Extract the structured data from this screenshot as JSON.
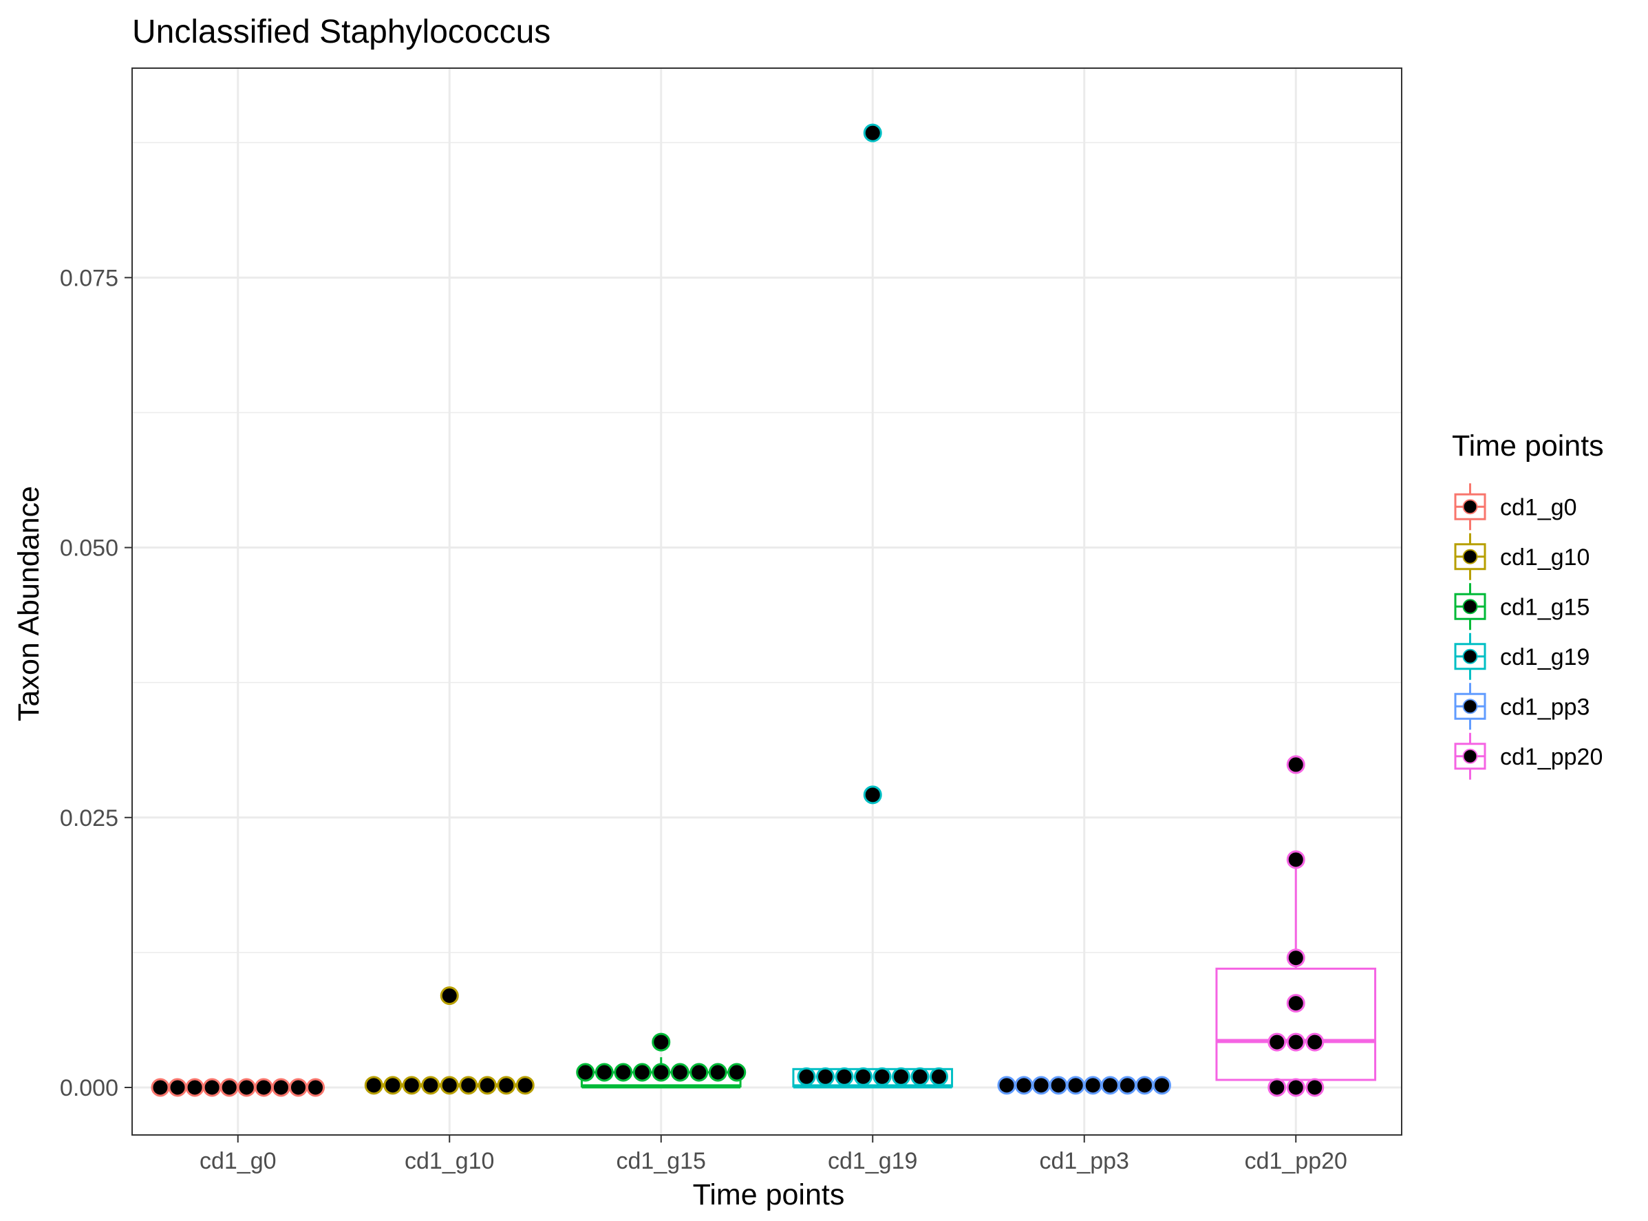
{
  "chart_data": {
    "type": "box",
    "title": "Unclassified  Staphylococcus",
    "xlabel": "Time points",
    "ylabel": "Taxon Abundance",
    "categories": [
      "cd1_g0",
      "cd1_g10",
      "cd1_g15",
      "cd1_g19",
      "cd1_pp3",
      "cd1_pp20"
    ],
    "ylim": [
      -0.0044,
      0.0944
    ],
    "yticks": [
      0.0,
      0.025,
      0.05,
      0.075
    ],
    "ytick_labels": [
      "0.000",
      "0.025",
      "0.050",
      "0.075"
    ],
    "grid": true,
    "legend": {
      "title": "Time points",
      "placement": "right",
      "entries": [
        "cd1_g0",
        "cd1_g10",
        "cd1_g15",
        "cd1_g19",
        "cd1_pp3",
        "cd1_pp20"
      ]
    },
    "colors": {
      "cd1_g0": "#F8766D",
      "cd1_g10": "#B79F00",
      "cd1_g15": "#00BA38",
      "cd1_g19": "#00BFC4",
      "cd1_pp3": "#619CFF",
      "cd1_pp20": "#F564E3",
      "point_fill": "#000000"
    },
    "series": [
      {
        "category": "cd1_g0",
        "box": {
          "q1": 0.0,
          "median": 0.0,
          "q3": 0.0,
          "whisker_low": 0.0,
          "whisker_high": 0.0
        },
        "points": [
          0.0,
          0.0,
          0.0,
          0.0,
          0.0,
          0.0,
          0.0,
          0.0,
          0.0,
          0.0
        ]
      },
      {
        "category": "cd1_g10",
        "box": {
          "q1": 0.0002,
          "median": 0.0002,
          "q3": 0.0002,
          "whisker_low": 0.0002,
          "whisker_high": 0.0002
        },
        "points": [
          0.0002,
          0.0002,
          0.0002,
          0.0002,
          0.0002,
          0.0002,
          0.0002,
          0.0002,
          0.0002,
          0.0085
        ]
      },
      {
        "category": "cd1_g15",
        "box": {
          "q1": 0.0001,
          "median": 0.0001,
          "q3": 0.0014,
          "whisker_low": 0.0001,
          "whisker_high": 0.0028
        },
        "points": [
          0.0014,
          0.0014,
          0.0014,
          0.0014,
          0.0014,
          0.0014,
          0.0014,
          0.0014,
          0.0014,
          0.0042
        ]
      },
      {
        "category": "cd1_g19",
        "box": {
          "q1": 0.0001,
          "median": 0.0001,
          "q3": 0.0017,
          "whisker_low": 0.0001,
          "whisker_high": 0.0017
        },
        "points": [
          0.001,
          0.001,
          0.001,
          0.001,
          0.001,
          0.001,
          0.001,
          0.001,
          0.0271,
          0.0884
        ]
      },
      {
        "category": "cd1_pp3",
        "box": {
          "q1": 0.0002,
          "median": 0.0002,
          "q3": 0.0003,
          "whisker_low": 0.0002,
          "whisker_high": 0.0003
        },
        "points": [
          0.0002,
          0.0002,
          0.0002,
          0.0002,
          0.0002,
          0.0002,
          0.0002,
          0.0002,
          0.0002,
          0.0002
        ]
      },
      {
        "category": "cd1_pp20",
        "box": {
          "q1": 0.0007,
          "median": 0.0043,
          "q3": 0.011,
          "whisker_low": 0.0007,
          "whisker_high": 0.0211
        },
        "points": [
          0.0,
          0.0,
          0.0,
          0.0042,
          0.0042,
          0.0042,
          0.0078,
          0.012,
          0.0211,
          0.0299
        ]
      }
    ]
  }
}
